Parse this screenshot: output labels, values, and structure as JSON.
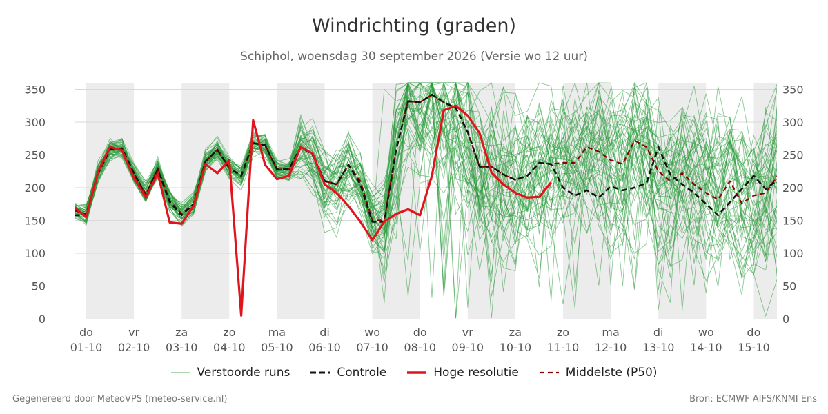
{
  "title": "Windrichting (graden)",
  "subtitle": "Schiphol, woensdag 30 september 2026 (Versie wo 12 uur)",
  "footer_left": "Gegenereerd door MeteoVPS (meteo-service.nl)",
  "footer_right": "Bron: ECMWF AIFS/KNMI Ens",
  "colors": {
    "members": "#2a9a3a",
    "control": "#111111",
    "high_res": "#e0141c",
    "median": "#8b0000",
    "shade": "#ececec",
    "grid": "#d9d9d9"
  },
  "legend": [
    {
      "key": "members",
      "label": "Verstoorde runs",
      "style": "thin-solid"
    },
    {
      "key": "control",
      "label": "Controle",
      "style": "dashed"
    },
    {
      "key": "high_res",
      "label": "Hoge resolutie",
      "style": "thick-solid"
    },
    {
      "key": "median",
      "label": "Middelste (P50)",
      "style": "dashed"
    }
  ],
  "chart_data": {
    "type": "line",
    "title": "Windrichting (graden)",
    "ylim": [
      0,
      360
    ],
    "yticks": [
      0,
      50,
      100,
      150,
      200,
      250,
      300,
      350
    ],
    "xlim": [
      0,
      14.5
    ],
    "grid": "horizontal",
    "legend_position": "bottom",
    "shaded_days": [
      [
        0,
        1
      ],
      [
        2,
        3
      ],
      [
        4,
        5
      ],
      [
        6,
        7
      ],
      [
        8,
        9
      ],
      [
        10,
        11
      ],
      [
        12,
        13
      ],
      [
        14,
        14.5
      ]
    ],
    "x_ticks": [
      {
        "x": 0,
        "day": "do",
        "date": "01-10"
      },
      {
        "x": 1,
        "day": "vr",
        "date": "02-10"
      },
      {
        "x": 2,
        "day": "za",
        "date": "03-10"
      },
      {
        "x": 3,
        "day": "zo",
        "date": "04-10"
      },
      {
        "x": 4,
        "day": "ma",
        "date": "05-10"
      },
      {
        "x": 5,
        "day": "di",
        "date": "06-10"
      },
      {
        "x": 6,
        "day": "wo",
        "date": "07-10"
      },
      {
        "x": 7,
        "day": "do",
        "date": "08-10"
      },
      {
        "x": 8,
        "day": "vr",
        "date": "09-10"
      },
      {
        "x": 9,
        "day": "za",
        "date": "10-10"
      },
      {
        "x": 10,
        "day": "zo",
        "date": "11-10"
      },
      {
        "x": 11,
        "day": "ma",
        "date": "12-10"
      },
      {
        "x": 12,
        "day": "di",
        "date": "13-10"
      },
      {
        "x": 13,
        "day": "wo",
        "date": "14-10"
      },
      {
        "x": 14,
        "day": "do",
        "date": "15-10"
      }
    ],
    "series": [
      {
        "name": "Hoge resolutie",
        "key": "high_res",
        "points": [
          [
            -0.25,
            170
          ],
          [
            -0.0,
            155
          ],
          [
            0.25,
            225
          ],
          [
            0.5,
            262
          ],
          [
            0.75,
            257
          ],
          [
            1.0,
            215
          ],
          [
            1.25,
            185
          ],
          [
            1.5,
            222
          ],
          [
            1.75,
            147
          ],
          [
            2.0,
            145
          ],
          [
            2.25,
            172
          ],
          [
            2.5,
            236
          ],
          [
            2.75,
            222
          ],
          [
            3.0,
            242
          ],
          [
            3.25,
            5
          ],
          [
            3.5,
            303
          ],
          [
            3.75,
            235
          ],
          [
            4.0,
            213
          ],
          [
            4.25,
            218
          ],
          [
            4.5,
            262
          ],
          [
            4.75,
            252
          ],
          [
            5.0,
            205
          ],
          [
            5.25,
            192
          ],
          [
            5.5,
            172
          ],
          [
            5.75,
            148
          ],
          [
            6.0,
            120
          ],
          [
            6.25,
            148
          ],
          [
            6.5,
            160
          ],
          [
            6.75,
            167
          ],
          [
            7.0,
            158
          ],
          [
            7.25,
            218
          ],
          [
            7.5,
            318
          ],
          [
            7.75,
            325
          ],
          [
            8.0,
            310
          ],
          [
            8.25,
            283
          ],
          [
            8.5,
            223
          ],
          [
            8.75,
            205
          ],
          [
            9.0,
            192
          ],
          [
            9.25,
            185
          ],
          [
            9.5,
            186
          ],
          [
            9.75,
            208
          ]
        ]
      },
      {
        "name": "Controle",
        "key": "control",
        "points": [
          [
            -0.25,
            158
          ],
          [
            -0.0,
            158
          ],
          [
            0.25,
            222
          ],
          [
            0.5,
            258
          ],
          [
            0.75,
            260
          ],
          [
            1.0,
            222
          ],
          [
            1.25,
            188
          ],
          [
            1.5,
            228
          ],
          [
            1.75,
            178
          ],
          [
            2.0,
            158
          ],
          [
            2.25,
            175
          ],
          [
            2.5,
            240
          ],
          [
            2.75,
            258
          ],
          [
            3.0,
            230
          ],
          [
            3.25,
            218
          ],
          [
            3.5,
            268
          ],
          [
            3.75,
            265
          ],
          [
            4.0,
            228
          ],
          [
            4.25,
            228
          ],
          [
            4.5,
            262
          ],
          [
            4.75,
            250
          ],
          [
            5.0,
            210
          ],
          [
            5.25,
            205
          ],
          [
            5.5,
            235
          ],
          [
            5.75,
            205
          ],
          [
            6.0,
            148
          ],
          [
            6.25,
            148
          ],
          [
            6.5,
            258
          ],
          [
            6.75,
            332
          ],
          [
            7.0,
            330
          ],
          [
            7.25,
            342
          ],
          [
            7.5,
            330
          ],
          [
            7.75,
            322
          ],
          [
            8.0,
            285
          ],
          [
            8.25,
            232
          ],
          [
            8.5,
            232
          ],
          [
            8.75,
            220
          ],
          [
            9.0,
            212
          ],
          [
            9.25,
            218
          ],
          [
            9.5,
            238
          ],
          [
            9.75,
            236
          ],
          [
            10.0,
            200
          ],
          [
            10.25,
            188
          ],
          [
            10.5,
            196
          ],
          [
            10.75,
            185
          ],
          [
            11.0,
            202
          ],
          [
            11.25,
            196
          ],
          [
            11.5,
            200
          ],
          [
            11.75,
            207
          ],
          [
            12.0,
            262
          ],
          [
            12.25,
            220
          ],
          [
            12.5,
            205
          ],
          [
            12.75,
            192
          ],
          [
            13.0,
            175
          ],
          [
            13.25,
            158
          ],
          [
            13.5,
            178
          ],
          [
            13.75,
            198
          ],
          [
            14.0,
            218
          ],
          [
            14.25,
            198
          ],
          [
            14.5,
            212
          ]
        ]
      },
      {
        "name": "Middelste (P50)",
        "key": "median",
        "points": [
          [
            -0.25,
            165
          ],
          [
            -0.0,
            160
          ],
          [
            0.25,
            225
          ],
          [
            0.5,
            260
          ],
          [
            0.75,
            260
          ],
          [
            1.0,
            222
          ],
          [
            1.25,
            190
          ],
          [
            1.5,
            230
          ],
          [
            1.75,
            180
          ],
          [
            2.0,
            160
          ],
          [
            2.25,
            175
          ],
          [
            2.5,
            240
          ],
          [
            2.75,
            258
          ],
          [
            3.0,
            230
          ],
          [
            3.25,
            218
          ],
          [
            3.5,
            268
          ],
          [
            3.75,
            265
          ],
          [
            4.0,
            228
          ],
          [
            4.25,
            228
          ],
          [
            4.5,
            262
          ],
          [
            4.75,
            252
          ],
          [
            5.0,
            210
          ],
          [
            5.25,
            205
          ],
          [
            5.5,
            235
          ],
          [
            5.75,
            210
          ],
          [
            6.0,
            150
          ],
          [
            6.25,
            150
          ],
          [
            6.5,
            258
          ],
          [
            6.75,
            332
          ],
          [
            7.0,
            330
          ],
          [
            7.25,
            342
          ],
          [
            7.5,
            330
          ],
          [
            7.75,
            322
          ],
          [
            8.0,
            285
          ],
          [
            8.25,
            232
          ],
          [
            8.5,
            232
          ],
          [
            8.75,
            220
          ],
          [
            9.0,
            212
          ],
          [
            9.25,
            218
          ],
          [
            9.5,
            238
          ],
          [
            9.75,
            236
          ],
          [
            10.0,
            238
          ],
          [
            10.25,
            238
          ],
          [
            10.5,
            262
          ],
          [
            10.75,
            255
          ],
          [
            11.0,
            242
          ],
          [
            11.25,
            236
          ],
          [
            11.5,
            272
          ],
          [
            11.75,
            262
          ],
          [
            12.0,
            225
          ],
          [
            12.25,
            210
          ],
          [
            12.5,
            222
          ],
          [
            12.75,
            205
          ],
          [
            13.0,
            192
          ],
          [
            13.25,
            182
          ],
          [
            13.5,
            210
          ],
          [
            13.75,
            176
          ],
          [
            14.0,
            188
          ],
          [
            14.25,
            192
          ],
          [
            14.5,
            218
          ]
        ]
      }
    ],
    "ensemble": {
      "name": "Verstoorde runs",
      "members": 50,
      "x_start": -0.25,
      "x_step": 0.25,
      "values_hint": "50 thin ensemble member lines spread mostly 150-270 in the first days, widely 0-360 from day 5 onward"
    }
  }
}
